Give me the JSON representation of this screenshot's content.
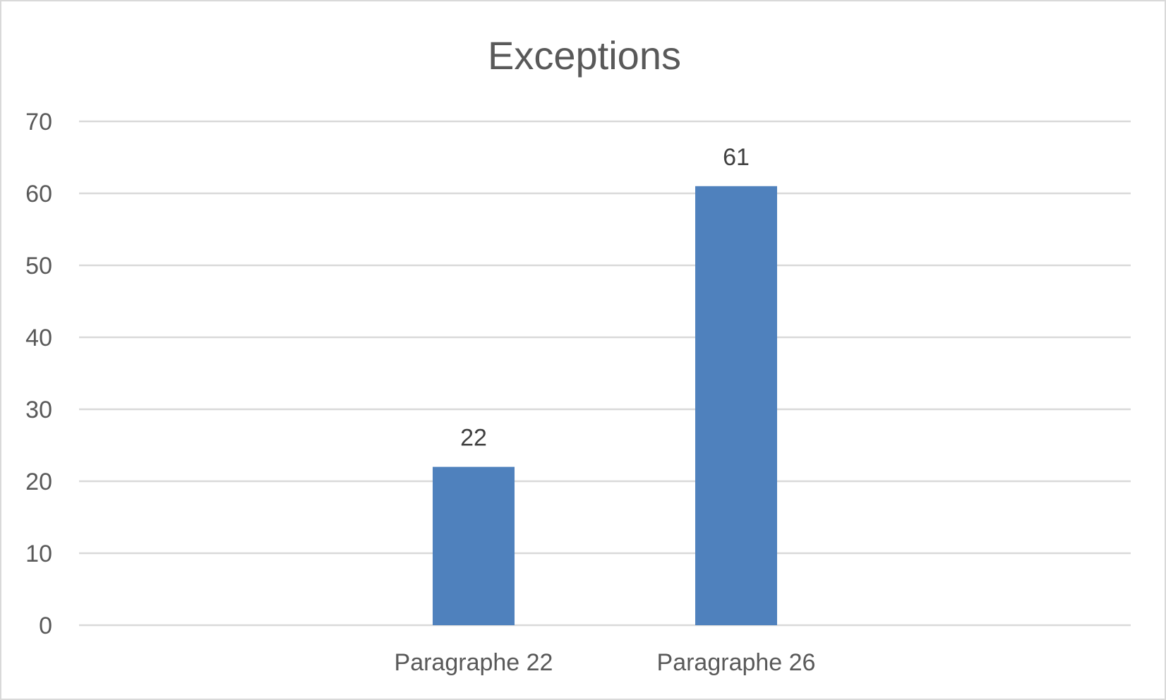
{
  "chart_data": {
    "type": "bar",
    "title": "Exceptions",
    "categories": [
      "Paragraphe 22",
      "Paragraphe 26"
    ],
    "series": [
      {
        "values": [
          22,
          61
        ],
        "color": "#4f81bd"
      }
    ],
    "ylim": [
      0,
      70
    ],
    "yticks": [
      "0",
      "10",
      "20",
      "30",
      "40",
      "50",
      "60",
      "70"
    ],
    "grid": true,
    "data_labels": [
      "22",
      "61"
    ],
    "colors": {
      "bar": "#4f81bd",
      "grid": "#d9d9d9",
      "text": "#595959",
      "data_label": "#404040"
    }
  }
}
